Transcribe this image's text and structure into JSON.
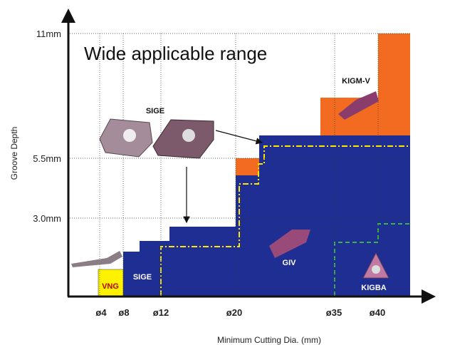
{
  "title": "Wide applicable range",
  "y_axis": {
    "label": "Groove Depth",
    "ticks": [
      "11mm",
      "5.5mm",
      "3.0mm"
    ]
  },
  "x_axis": {
    "label": "Minimum Cutting Dia. (mm)",
    "ticks": [
      "ø4",
      "ø8",
      "ø12",
      "ø20",
      "ø35",
      "ø40"
    ]
  },
  "products": {
    "vng": "VNG",
    "sige": "SIGE",
    "sige_top": "SIGE",
    "giv": "GIV",
    "kigba": "KIGBA",
    "kigm_v": "KIGM-V"
  }
}
